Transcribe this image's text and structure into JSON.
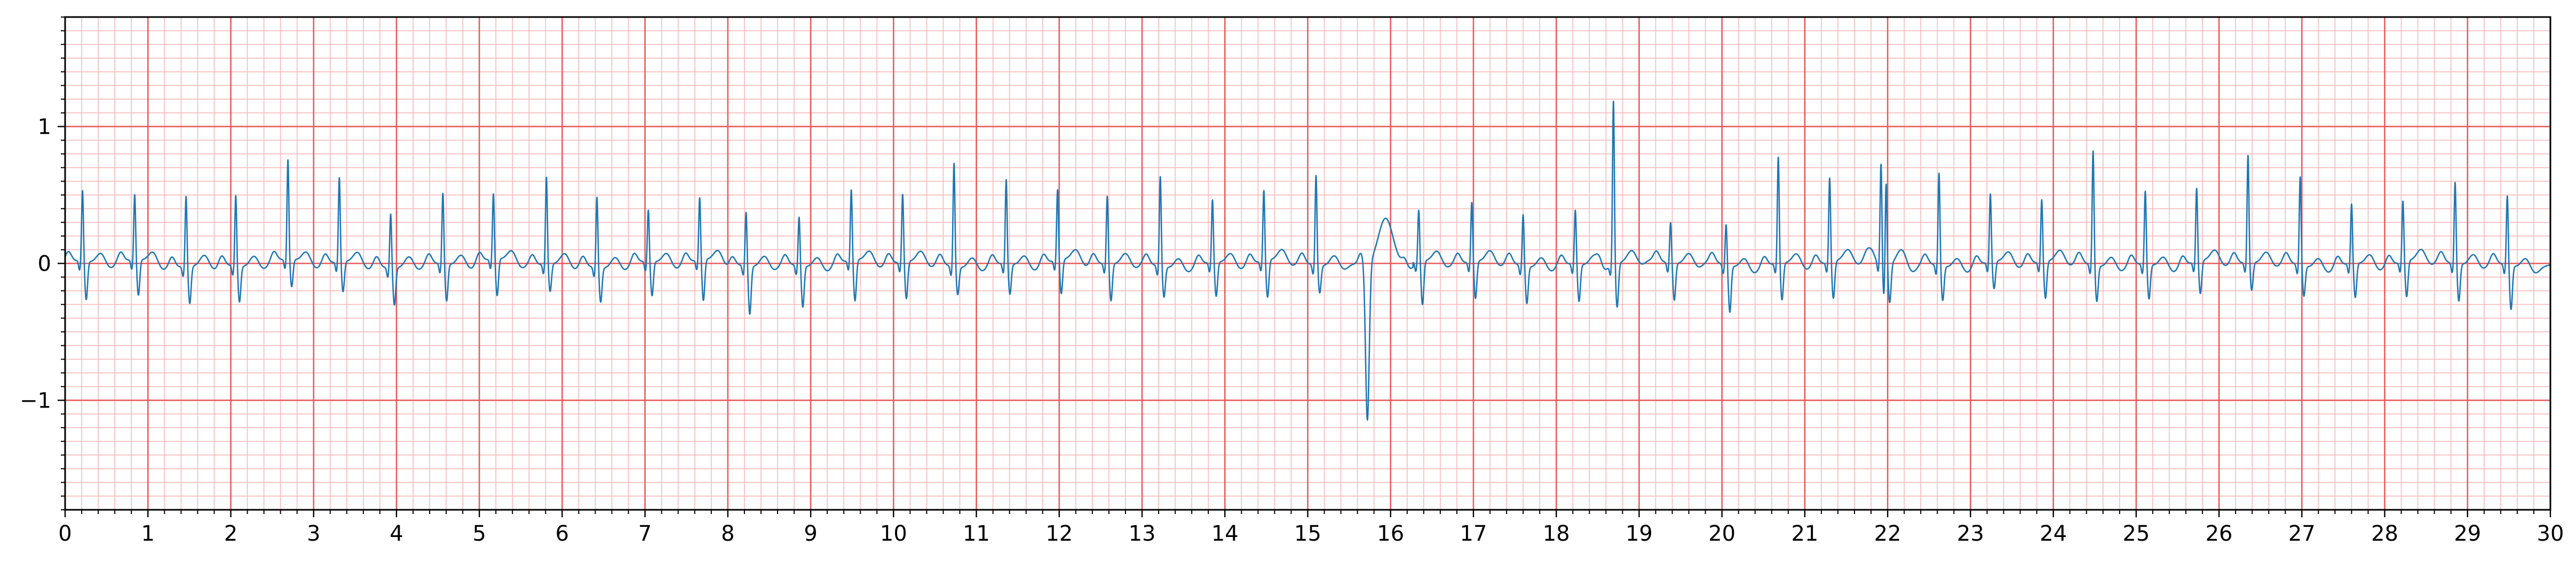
{
  "chart_data": {
    "type": "line",
    "title": "",
    "xlabel": "",
    "ylabel": "",
    "xlim": [
      0,
      30
    ],
    "ylim": [
      -1.8,
      1.8
    ],
    "x_ticks": [
      0,
      1,
      2,
      3,
      4,
      5,
      6,
      7,
      8,
      9,
      10,
      11,
      12,
      13,
      14,
      15,
      16,
      17,
      18,
      19,
      20,
      21,
      22,
      23,
      24,
      25,
      26,
      27,
      28,
      29,
      30
    ],
    "x_tick_labels": [
      "0",
      "1",
      "2",
      "3",
      "4",
      "5",
      "6",
      "7",
      "8",
      "9",
      "10",
      "11",
      "12",
      "13",
      "14",
      "15",
      "16",
      "17",
      "18",
      "19",
      "20",
      "21",
      "22",
      "23",
      "24",
      "25",
      "26",
      "27",
      "28",
      "29",
      "30"
    ],
    "y_ticks": [
      -1,
      0,
      1
    ],
    "y_tick_labels": [
      "−1",
      "0",
      "1"
    ],
    "major_grid": {
      "x_step": 1,
      "y_step": 1
    },
    "minor_grid": {
      "x_step": 0.2,
      "y_step": 0.1
    },
    "grid": true,
    "legend": "none",
    "colors": {
      "trace": "#1f77b4",
      "major_grid": "#e85b5b",
      "minor_grid": "#f7b9b9",
      "axes": "#000000"
    },
    "series": [
      {
        "beats": [
          {
            "t": 0.21,
            "r": 0.52,
            "s": -0.28
          },
          {
            "t": 0.84,
            "r": 0.48,
            "s": -0.26
          },
          {
            "t": 1.46,
            "r": 0.52,
            "s": -0.27
          },
          {
            "t": 2.06,
            "r": 0.52,
            "s": -0.26
          },
          {
            "t": 2.69,
            "r": 0.73,
            "s": -0.2
          },
          {
            "t": 3.31,
            "r": 0.62,
            "s": -0.22
          },
          {
            "t": 3.93,
            "r": 0.4,
            "s": -0.27
          },
          {
            "t": 4.56,
            "r": 0.52,
            "s": -0.27
          },
          {
            "t": 5.17,
            "r": 0.48,
            "s": -0.27
          },
          {
            "t": 5.81,
            "r": 0.64,
            "s": -0.2
          },
          {
            "t": 6.42,
            "r": 0.52,
            "s": -0.25
          },
          {
            "t": 7.04,
            "r": 0.38,
            "s": -0.25
          },
          {
            "t": 7.66,
            "r": 0.46,
            "s": -0.3
          },
          {
            "t": 8.22,
            "r": 0.4,
            "s": -0.35
          },
          {
            "t": 8.86,
            "r": 0.36,
            "s": -0.3
          },
          {
            "t": 9.49,
            "r": 0.52,
            "s": -0.3
          },
          {
            "t": 10.11,
            "r": 0.5,
            "s": -0.27
          },
          {
            "t": 10.73,
            "r": 0.76,
            "s": -0.2
          },
          {
            "t": 11.36,
            "r": 0.62,
            "s": -0.22
          },
          {
            "t": 11.98,
            "r": 0.52,
            "s": -0.25
          },
          {
            "t": 12.58,
            "r": 0.5,
            "s": -0.27
          },
          {
            "t": 13.22,
            "r": 0.66,
            "s": -0.22
          },
          {
            "t": 13.85,
            "r": 0.46,
            "s": -0.25
          },
          {
            "t": 14.47,
            "r": 0.52,
            "s": -0.27
          },
          {
            "t": 15.1,
            "r": 0.66,
            "s": -0.2
          },
          {
            "t": 15.72,
            "r": -1.15,
            "s": 0
          },
          {
            "t": 16.34,
            "r": 0.38,
            "s": -0.32
          },
          {
            "t": 16.98,
            "r": 0.44,
            "s": -0.27
          },
          {
            "t": 17.6,
            "r": 0.38,
            "s": -0.27
          },
          {
            "t": 18.23,
            "r": 0.4,
            "s": -0.27
          },
          {
            "t": 18.69,
            "r": 1.2,
            "s": -0.32
          },
          {
            "t": 19.38,
            "r": 0.3,
            "s": -0.27
          },
          {
            "t": 20.05,
            "r": 0.3,
            "s": -0.34
          },
          {
            "t": 20.68,
            "r": 0.78,
            "s": -0.27
          },
          {
            "t": 21.3,
            "r": 0.62,
            "s": -0.27
          },
          {
            "t": 21.92,
            "r": 0.74,
            "s": -0.27
          },
          {
            "t": 21.98,
            "r": 0.76,
            "s": -0.28
          },
          {
            "t": 22.62,
            "r": 0.68,
            "s": -0.25
          },
          {
            "t": 23.24,
            "r": 0.5,
            "s": -0.2
          },
          {
            "t": 23.86,
            "r": 0.46,
            "s": -0.27
          },
          {
            "t": 24.48,
            "r": 0.84,
            "s": -0.26
          },
          {
            "t": 25.11,
            "r": 0.54,
            "s": -0.25
          },
          {
            "t": 25.73,
            "r": 0.54,
            "s": -0.24
          },
          {
            "t": 26.35,
            "r": 0.79,
            "s": -0.2
          },
          {
            "t": 26.98,
            "r": 0.65,
            "s": -0.22
          },
          {
            "t": 27.6,
            "r": 0.44,
            "s": -0.25
          },
          {
            "t": 28.22,
            "r": 0.45,
            "s": -0.26
          },
          {
            "t": 28.85,
            "r": 0.6,
            "s": -0.27
          },
          {
            "t": 29.48,
            "r": 0.51,
            "s": -0.32
          }
        ]
      }
    ]
  }
}
